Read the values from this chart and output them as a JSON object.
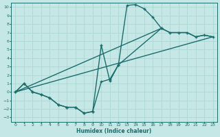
{
  "xlabel": "Humidex (Indice chaleur)",
  "xlim": [
    -0.5,
    23.5
  ],
  "ylim": [
    -3.5,
    10.5
  ],
  "xticks": [
    0,
    1,
    2,
    3,
    4,
    5,
    6,
    7,
    8,
    9,
    10,
    11,
    12,
    13,
    14,
    15,
    16,
    17,
    18,
    19,
    20,
    21,
    22,
    23
  ],
  "yticks": [
    -3,
    -2,
    -1,
    0,
    1,
    2,
    3,
    4,
    5,
    6,
    7,
    8,
    9,
    10
  ],
  "bg_color": "#c5e8e6",
  "grid_color": "#b0d8d5",
  "line_color": "#1a6b6b",
  "line_width": 1.0,
  "marker": "+",
  "marker_size": 3,
  "curve1_x": [
    0,
    1,
    2,
    3,
    4,
    5,
    6,
    7,
    8,
    9,
    10,
    11,
    12,
    13,
    14,
    15,
    16,
    17
  ],
  "curve1_y": [
    0,
    1,
    0,
    -0.3,
    -0.7,
    -1.5,
    -1.8,
    -1.8,
    -2.5,
    -2.3,
    5.5,
    1.3,
    3.2,
    10.2,
    10.3,
    9.8,
    8.8,
    7.5
  ],
  "curve2_x": [
    0,
    1,
    2,
    3,
    4,
    5,
    6,
    7,
    8,
    9,
    10,
    11,
    12,
    17,
    18,
    19,
    20,
    21,
    22,
    23
  ],
  "curve2_y": [
    0,
    1,
    0,
    -0.3,
    -0.7,
    -1.5,
    -1.8,
    -1.8,
    -2.5,
    -2.3,
    1.2,
    1.5,
    3.2,
    7.5,
    7.0,
    7.0,
    7.0,
    6.5,
    6.7,
    6.5
  ],
  "curve3_x": [
    0,
    23
  ],
  "curve3_y": [
    0,
    6.5
  ],
  "curve4_x": [
    0,
    17,
    18,
    19,
    20,
    21,
    22,
    23
  ],
  "curve4_y": [
    0,
    7.5,
    7.0,
    7.0,
    7.0,
    6.5,
    6.7,
    6.5
  ]
}
